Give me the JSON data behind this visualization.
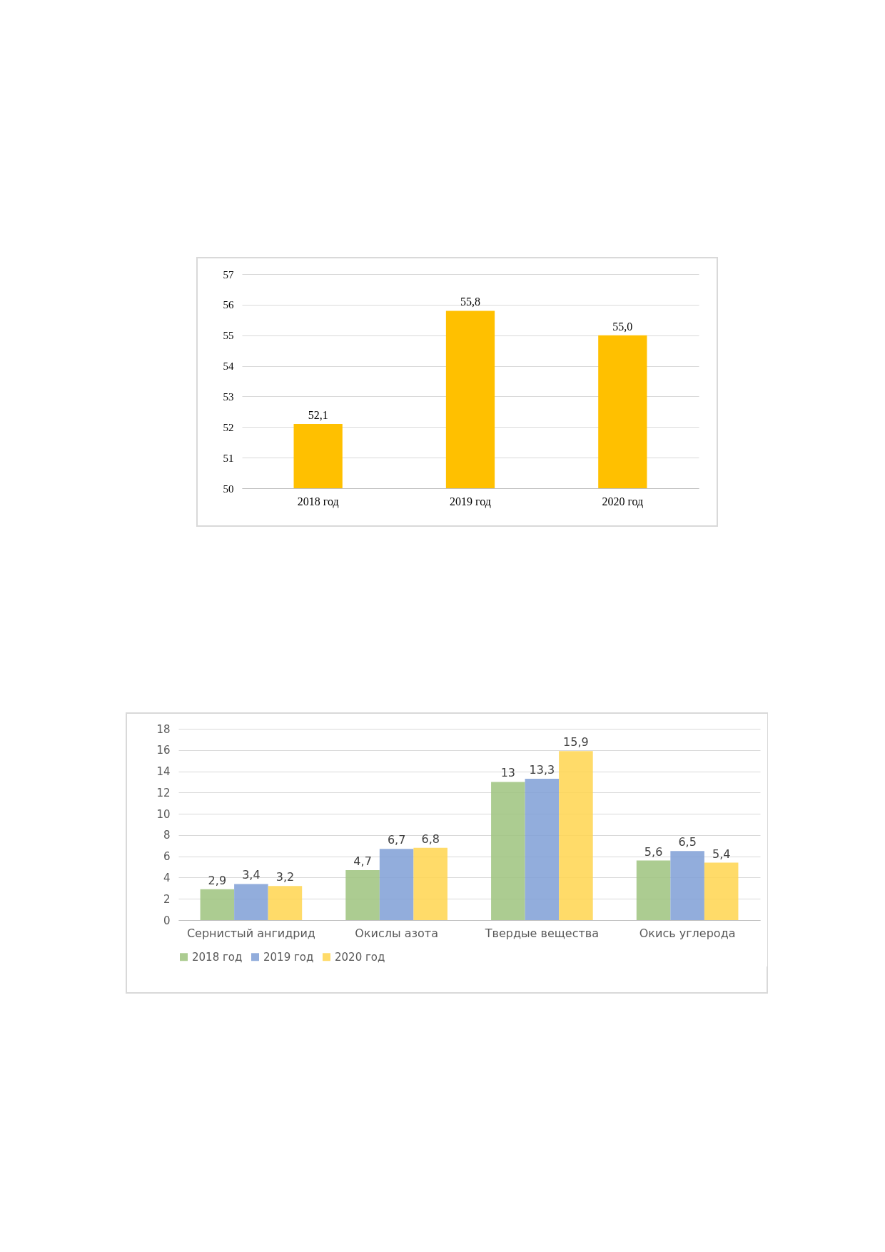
{
  "chart_data": [
    {
      "type": "bar",
      "categories": [
        "2018 год",
        "2019 год",
        "2020 год"
      ],
      "series": [
        {
          "color": "#ffc000",
          "values": [
            52.1,
            55.8,
            55.0
          ],
          "value_labels": [
            "52,1",
            "55,8",
            "55,0"
          ]
        }
      ],
      "ylim": [
        50,
        57
      ],
      "yticks": [
        50,
        51,
        52,
        53,
        54,
        55,
        56,
        57
      ],
      "grid": "y",
      "legend": false
    },
    {
      "type": "bar",
      "categories": [
        "Сернистый  ангидрид",
        "Окислы азота",
        "Твердые  вещества",
        "Окись углерода"
      ],
      "series": [
        {
          "name": "2018 год",
          "color": "#9dc37e",
          "values": [
            2.9,
            4.7,
            13,
            5.6
          ],
          "value_labels": [
            "2,9",
            "4,7",
            "13",
            "5,6"
          ]
        },
        {
          "name": "2019 год",
          "color": "#7f9fd6",
          "values": [
            3.4,
            6.7,
            13.3,
            6.5
          ],
          "value_labels": [
            "3,4",
            "6,7",
            "13,3",
            "6,5"
          ]
        },
        {
          "name": "2020 год",
          "color": "#ffd54f",
          "values": [
            3.2,
            6.8,
            15.9,
            5.4
          ],
          "value_labels": [
            "3,2",
            "6,8",
            "15,9",
            "5,4"
          ]
        }
      ],
      "ylim": [
        0,
        18
      ],
      "yticks": [
        0,
        2,
        4,
        6,
        8,
        10,
        12,
        14,
        16,
        18
      ],
      "grid": "y",
      "legend": "bottom"
    }
  ]
}
